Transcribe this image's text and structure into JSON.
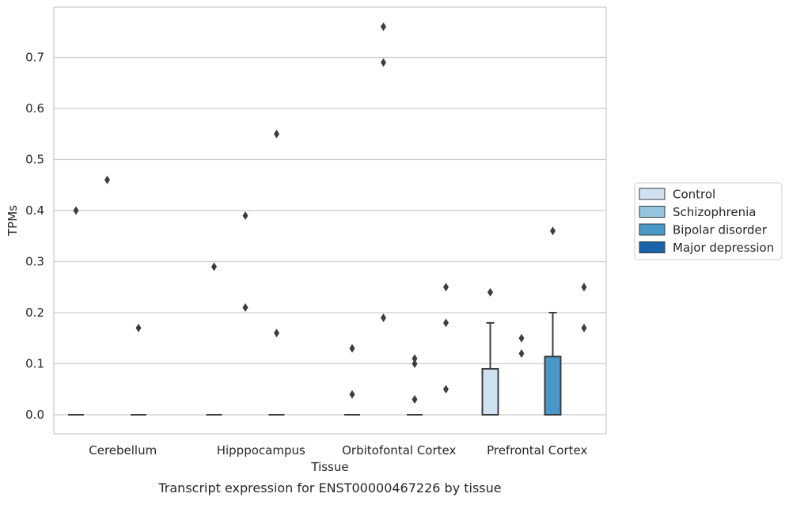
{
  "caption": "Transcript expression for ENST00000467226 by tissue",
  "chart_data": {
    "type": "box",
    "xlabel": "Tissue",
    "ylabel": "TPMs",
    "ylim": [
      -0.037,
      0.8
    ],
    "yticks": [
      0.0,
      0.1,
      0.2,
      0.3,
      0.4,
      0.5,
      0.6,
      0.7
    ],
    "grid": "horizontal",
    "legend_placement": "right",
    "categories": [
      "Cerebellum",
      "Hipppocampus",
      "Orbitofontal Cortex",
      "Prefrontal Cortex"
    ],
    "series": [
      {
        "name": "Control",
        "color": "#d0e1f2"
      },
      {
        "name": "Schizophrenia",
        "color": "#94c4df"
      },
      {
        "name": "Bipolar disorder",
        "color": "#4a98c9"
      },
      {
        "name": "Major depression",
        "color": "#1764ab"
      }
    ],
    "boxes": [
      {
        "category": 0,
        "series": 0,
        "q1": 0,
        "median": 0,
        "q3": 0,
        "whisker_low": 0,
        "whisker_high": 0
      },
      {
        "category": 0,
        "series": 2,
        "q1": 0,
        "median": 0,
        "q3": 0,
        "whisker_low": 0,
        "whisker_high": 0
      },
      {
        "category": 1,
        "series": 0,
        "q1": 0,
        "median": 0,
        "q3": 0,
        "whisker_low": 0,
        "whisker_high": 0
      },
      {
        "category": 1,
        "series": 2,
        "q1": 0,
        "median": 0,
        "q3": 0,
        "whisker_low": 0,
        "whisker_high": 0
      },
      {
        "category": 2,
        "series": 0,
        "q1": 0,
        "median": 0,
        "q3": 0,
        "whisker_low": 0,
        "whisker_high": 0
      },
      {
        "category": 2,
        "series": 2,
        "q1": 0,
        "median": 0,
        "q3": 0,
        "whisker_low": 0,
        "whisker_high": 0
      },
      {
        "category": 3,
        "series": 0,
        "q1": 0,
        "median": 0,
        "q3": 0.09,
        "whisker_low": 0,
        "whisker_high": 0.18
      },
      {
        "category": 3,
        "series": 2,
        "q1": 0,
        "median": 0,
        "q3": 0.114,
        "whisker_low": 0,
        "whisker_high": 0.2
      }
    ],
    "outliers": [
      {
        "category": 0,
        "series": 0,
        "values": [
          0.4
        ]
      },
      {
        "category": 0,
        "series": 1,
        "values": [
          0.46
        ]
      },
      {
        "category": 0,
        "series": 2,
        "values": [
          0.17
        ]
      },
      {
        "category": 1,
        "series": 0,
        "values": [
          0.29
        ]
      },
      {
        "category": 1,
        "series": 1,
        "values": [
          0.39,
          0.21
        ]
      },
      {
        "category": 1,
        "series": 2,
        "values": [
          0.55,
          0.16
        ]
      },
      {
        "category": 2,
        "series": 0,
        "values": [
          0.13,
          0.04
        ]
      },
      {
        "category": 2,
        "series": 1,
        "values": [
          0.76,
          0.69,
          0.19
        ]
      },
      {
        "category": 2,
        "series": 2,
        "values": [
          0.11,
          0.1,
          0.03
        ]
      },
      {
        "category": 2,
        "series": 3,
        "values": [
          0.25,
          0.18,
          0.05
        ]
      },
      {
        "category": 3,
        "series": 0,
        "values": [
          0.24
        ]
      },
      {
        "category": 3,
        "series": 1,
        "values": [
          0.15,
          0.12
        ]
      },
      {
        "category": 3,
        "series": 2,
        "values": [
          0.36
        ]
      },
      {
        "category": 3,
        "series": 3,
        "values": [
          0.25,
          0.17
        ]
      }
    ]
  }
}
